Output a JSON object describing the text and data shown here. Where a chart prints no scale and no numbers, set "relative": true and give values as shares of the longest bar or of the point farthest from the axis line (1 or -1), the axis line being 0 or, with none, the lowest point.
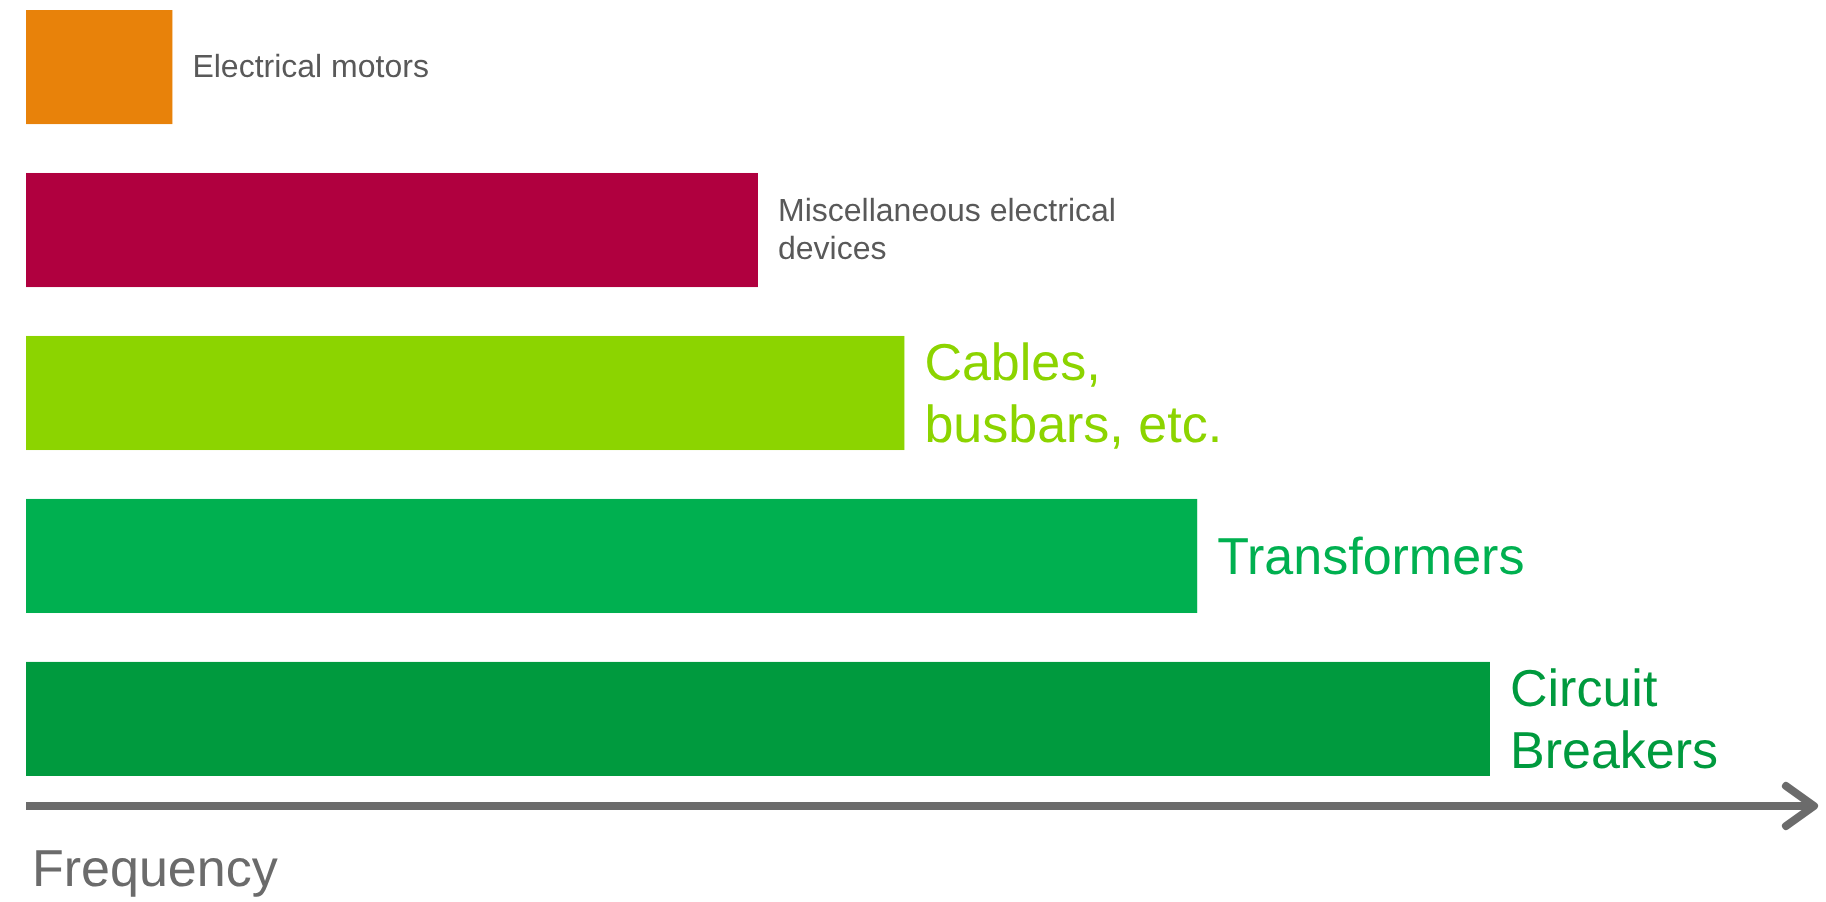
{
  "chart_data": {
    "type": "bar",
    "orientation": "horizontal",
    "relative": true,
    "xlabel": "Frequency",
    "categories": [
      "Electrical motors",
      "Miscellaneous electrical devices",
      "Cables, busbars, etc.",
      "Transformers",
      "Circuit Breakers"
    ],
    "values": [
      0.1,
      0.5,
      0.6,
      0.8,
      1.0
    ],
    "colors": [
      "#e8820a",
      "#b0003f",
      "#8cd400",
      "#00b050",
      "#009a3e"
    ]
  }
}
